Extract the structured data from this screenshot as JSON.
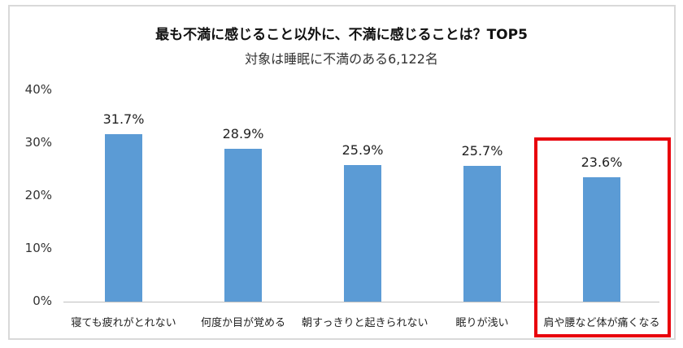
{
  "chart_data": {
    "type": "bar",
    "title": "最も不満に感じること以外に、不満に感じることは？TOP5",
    "subtitle": "対象は睡眠に不満のある6,122名",
    "categories": [
      "寝ても疲れがとれない",
      "何度か目が覚める",
      "朝すっきりと起きられない",
      "眠りが浅い",
      "肩や腰など体が痛くなる"
    ],
    "values": [
      31.7,
      28.9,
      25.9,
      25.7,
      23.6
    ],
    "value_labels": [
      "31.7%",
      "28.9%",
      "25.9%",
      "25.7%",
      "23.6%"
    ],
    "xlabel": "",
    "ylabel": "",
    "ylim": [
      0,
      40
    ],
    "yticks": [
      "40%",
      "30%",
      "20%",
      "10%",
      "0%"
    ],
    "grid": false,
    "legend": null,
    "bar_color": "#5b9bd5",
    "annotations": [
      {
        "type": "highlight-box",
        "target": "肩や腰など体が痛くなる",
        "color": "#e8000b"
      }
    ]
  }
}
